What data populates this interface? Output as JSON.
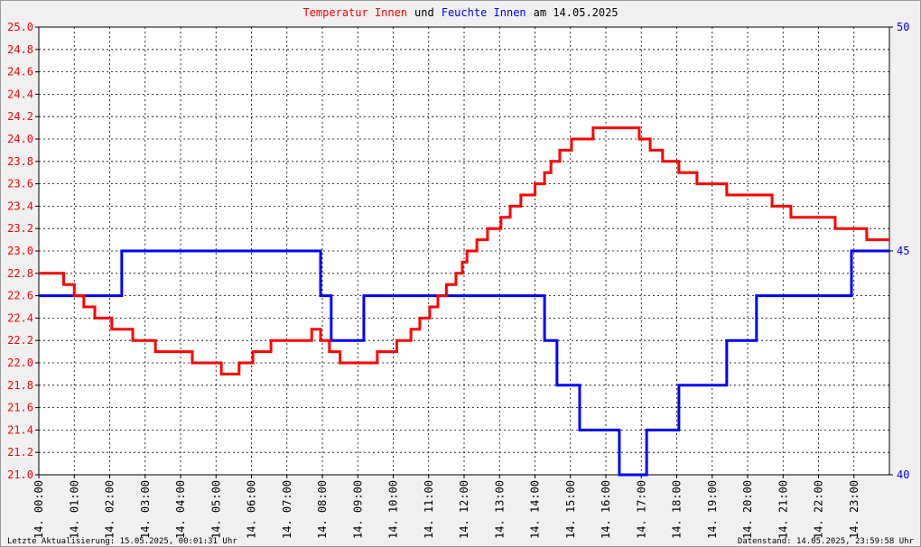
{
  "chart_data": {
    "type": "step-line",
    "title_parts": [
      {
        "text": "Temperatur Innen",
        "color": "#ff0000"
      },
      {
        "text": "und",
        "color": "#000000"
      },
      {
        "text": "Feuchte Innen",
        "color": "#0000ff"
      },
      {
        "text": "am 14.05.2025",
        "color": "#000000"
      }
    ],
    "footer_left": "Letzte Aktualisierung: 15.05.2025, 00:01:31 Uhr",
    "footer_right": "Datenstand: 14.05.2025, 23:59:58 Uhr",
    "xlim": [
      0,
      24
    ],
    "xticks": [
      {
        "value": 0,
        "label": "14. 00:00"
      },
      {
        "value": 1,
        "label": "14. 01:00"
      },
      {
        "value": 2,
        "label": "14. 02:00"
      },
      {
        "value": 3,
        "label": "14. 03:00"
      },
      {
        "value": 4,
        "label": "14. 04:00"
      },
      {
        "value": 5,
        "label": "14. 05:00"
      },
      {
        "value": 6,
        "label": "14. 06:00"
      },
      {
        "value": 7,
        "label": "14. 07:00"
      },
      {
        "value": 8,
        "label": "14. 08:00"
      },
      {
        "value": 9,
        "label": "14. 09:00"
      },
      {
        "value": 10,
        "label": "14. 10:00"
      },
      {
        "value": 11,
        "label": "14. 11:00"
      },
      {
        "value": 12,
        "label": "14. 12:00"
      },
      {
        "value": 13,
        "label": "14. 13:00"
      },
      {
        "value": 14,
        "label": "14. 14:00"
      },
      {
        "value": 15,
        "label": "14. 15:00"
      },
      {
        "value": 16,
        "label": "14. 16:00"
      },
      {
        "value": 17,
        "label": "14. 17:00"
      },
      {
        "value": 18,
        "label": "14. 18:00"
      },
      {
        "value": 19,
        "label": "14. 19:00"
      },
      {
        "value": 20,
        "label": "14. 20:00"
      },
      {
        "value": 21,
        "label": "14. 21:00"
      },
      {
        "value": 22,
        "label": "14. 22:00"
      },
      {
        "value": 23,
        "label": "14. 23:00"
      }
    ],
    "ylim": [
      21,
      25
    ],
    "yticks": [
      {
        "value": 21,
        "label": "21.0"
      },
      {
        "value": 21.2,
        "label": "21.2"
      },
      {
        "value": 21.4,
        "label": "21.4"
      },
      {
        "value": 21.6,
        "label": "21.6"
      },
      {
        "value": 21.8,
        "label": "21.8"
      },
      {
        "value": 22,
        "label": "22.0"
      },
      {
        "value": 22.2,
        "label": "22.2"
      },
      {
        "value": 22.4,
        "label": "22.4"
      },
      {
        "value": 22.6,
        "label": "22.6"
      },
      {
        "value": 22.8,
        "label": "22.8"
      },
      {
        "value": 23,
        "label": "23.0"
      },
      {
        "value": 23.2,
        "label": "23.2"
      },
      {
        "value": 23.4,
        "label": "23.4"
      },
      {
        "value": 23.6,
        "label": "23.6"
      },
      {
        "value": 23.8,
        "label": "23.8"
      },
      {
        "value": 24,
        "label": "24.0"
      },
      {
        "value": 24.2,
        "label": "24.2"
      },
      {
        "value": 24.4,
        "label": "24.4"
      },
      {
        "value": 24.6,
        "label": "24.6"
      },
      {
        "value": 24.8,
        "label": "24.8"
      },
      {
        "value": 25,
        "label": "25.0"
      }
    ],
    "y2lim": [
      40,
      50
    ],
    "y2ticks": [
      40,
      45,
      50
    ],
    "grid": true,
    "series": [
      {
        "name": "Temperatur Innen",
        "color": "#ff0000",
        "x": [
          0,
          0.7,
          1.0,
          1.27,
          1.58,
          2.06,
          2.65,
          3.29,
          4.33,
          5.15,
          5.65,
          6.04,
          6.55,
          7.7,
          7.95,
          8.2,
          8.5,
          9.55,
          10.1,
          10.5,
          10.75,
          11.03,
          11.26,
          11.5,
          11.77,
          11.95,
          12.08,
          12.36,
          12.66,
          13.04,
          13.3,
          13.6,
          14.0,
          14.27,
          14.45,
          14.7,
          15.03,
          15.64,
          16.94,
          17.25,
          17.6,
          18.06,
          18.57,
          19.41,
          20.69,
          21.22,
          22.47,
          23.36
        ],
        "values": [
          22.8,
          22.7,
          22.6,
          22.5,
          22.4,
          22.3,
          22.2,
          22.1,
          22.0,
          21.9,
          22.0,
          22.1,
          22.2,
          22.3,
          22.2,
          22.1,
          22.0,
          22.1,
          22.2,
          22.3,
          22.4,
          22.5,
          22.6,
          22.7,
          22.8,
          22.9,
          23.0,
          23.1,
          23.2,
          23.3,
          23.4,
          23.5,
          23.6,
          23.7,
          23.8,
          23.9,
          24.0,
          24.1,
          24.0,
          23.9,
          23.8,
          23.7,
          23.6,
          23.5,
          23.4,
          23.3,
          23.2,
          23.1
        ]
      },
      {
        "name": "Feuchte Innen",
        "color": "#0000ff",
        "axis": "y2",
        "x": [
          0,
          2.34,
          7.95,
          8.25,
          9.17,
          14.27,
          14.62,
          15.26,
          16.38,
          17.15,
          18.06,
          19.41,
          20.25,
          22.93
        ],
        "values": [
          44,
          45,
          44,
          43,
          44,
          43,
          42,
          41,
          40,
          41,
          42,
          43,
          44,
          45
        ]
      }
    ]
  }
}
